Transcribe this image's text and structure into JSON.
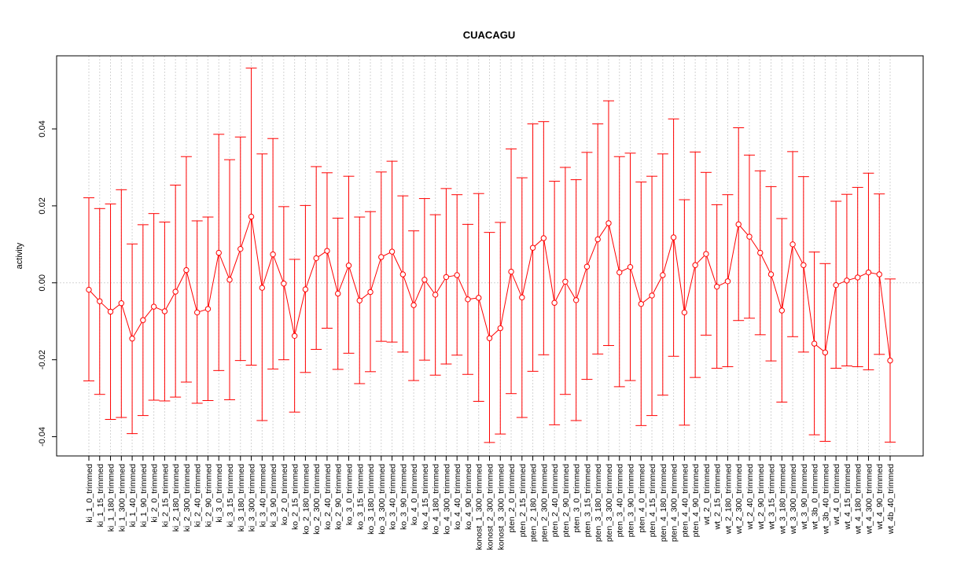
{
  "chart_data": {
    "type": "line",
    "title": "CUACAGU",
    "xlabel": "",
    "ylabel": "activity",
    "ylim": [
      -0.045,
      0.059
    ],
    "yticks": [
      -0.04,
      -0.02,
      0.0,
      0.02,
      0.04
    ],
    "ytick_labels": [
      "-0.04",
      "-0.02",
      "0.00",
      "0.02",
      "0.04"
    ],
    "grid": true,
    "colors": {
      "series": "#ff0000",
      "grid": "#d3d3d3",
      "axis": "#000000"
    },
    "categories": [
      "ki_1_0_trimmed",
      "ki_1_15_trimmed",
      "ki_1_180_trimmed",
      "ki_1_300_trimmed",
      "ki_1_40_trimmed",
      "ki_1_90_trimmed",
      "ki_2_0_trimmed",
      "ki_2_15_trimmed",
      "ki_2_180_trimmed",
      "ki_2_300_trimmed",
      "ki_2_40_trimmed",
      "ki_2_90_trimmed",
      "ki_3_0_trimmed",
      "ki_3_15_trimmed",
      "ki_3_180_trimmed",
      "ki_3_300_trimmed",
      "ki_3_40_trimmed",
      "ki_3_90_trimmed",
      "ko_2_0_trimmed",
      "ko_2_15_trimmed",
      "ko_2_180_trimmed",
      "ko_2_300_trimmed",
      "ko_2_40_trimmed",
      "ko_2_90_trimmed",
      "ko_3_0_trimmed",
      "ko_3_15_trimmed",
      "ko_3_180_trimmed",
      "ko_3_300_trimmed",
      "ko_3_40_trimmed",
      "ko_3_90_trimmed",
      "ko_4_0_trimmed",
      "ko_4_15_trimmed",
      "ko_4_180_trimmed",
      "ko_4_300_trimmed",
      "ko_4_40_trimmed",
      "ko_4_90_trimmed",
      "konost_1_300_trimmed",
      "konost_2_300_trimmed",
      "konost_3_300_trimmed",
      "pten_2_0_trimmed",
      "pten_2_15_trimmed",
      "pten_2_180_trimmed",
      "pten_2_300_trimmed",
      "pten_2_40_trimmed",
      "pten_2_90_trimmed",
      "pten_3_0_trimmed",
      "pten_3_15_trimmed",
      "pten_3_180_trimmed",
      "pten_3_300_trimmed",
      "pten_3_40_trimmed",
      "pten_3_90_trimmed",
      "pten_4_0_trimmed",
      "pten_4_15_trimmed",
      "pten_4_180_trimmed",
      "pten_4_300_trimmed",
      "pten_4_40_trimmed",
      "pten_4_90_trimmed",
      "wt_2_0_trimmed",
      "wt_2_15_trimmed",
      "wt_2_180_trimmed",
      "wt_2_300_trimmed",
      "wt_2_40_trimmed",
      "wt_2_90_trimmed",
      "wt_3_15_trimmed",
      "wt_3_180_trimmed",
      "wt_3_300_trimmed",
      "wt_3_90_trimmed",
      "wt_3b_0_trimmed",
      "wt_3b_40_trimmed",
      "wt_4_0_trimmed",
      "wt_4_15_trimmed",
      "wt_4_180_trimmed",
      "wt_4_300_trimmed",
      "wt_4_90_trimmed",
      "wt_4b_40_trimmed"
    ],
    "series": [
      {
        "values": [
          -0.0018,
          -0.0048,
          -0.0075,
          -0.0053,
          -0.0145,
          -0.0097,
          -0.0062,
          -0.0074,
          -0.0023,
          0.0033,
          -0.0077,
          -0.0068,
          0.0078,
          0.0008,
          0.0088,
          0.0172,
          -0.0013,
          0.0074,
          -0.0002,
          -0.0138,
          -0.0017,
          0.0064,
          0.0083,
          -0.0028,
          0.0045,
          -0.0046,
          -0.0024,
          0.0067,
          0.0081,
          0.0022,
          -0.0058,
          0.0008,
          -0.0031,
          0.0015,
          0.002,
          -0.0043,
          -0.0039,
          -0.0144,
          -0.0118,
          0.0029,
          -0.0038,
          0.0091,
          0.0116,
          -0.0052,
          0.0003,
          -0.0045,
          0.0042,
          0.0113,
          0.0155,
          0.0027,
          0.0041,
          -0.0055,
          -0.0033,
          0.002,
          0.0118,
          -0.0077,
          0.0046,
          0.0075,
          -0.001,
          0.0004,
          0.0152,
          0.012,
          0.0078,
          0.0022,
          -0.0072,
          0.01,
          0.0046,
          -0.0158,
          -0.0181,
          -0.0006,
          0.0006,
          0.0014,
          0.0027,
          0.0022,
          -0.0202
        ],
        "lower": [
          -0.0255,
          -0.029,
          -0.0355,
          -0.035,
          -0.0392,
          -0.0345,
          -0.0305,
          -0.0307,
          -0.0297,
          -0.0258,
          -0.0313,
          -0.0306,
          -0.0228,
          -0.0304,
          -0.0202,
          -0.0214,
          -0.0358,
          -0.0224,
          -0.02,
          -0.0336,
          -0.0233,
          -0.0173,
          -0.0118,
          -0.0225,
          -0.0183,
          -0.0262,
          -0.0231,
          -0.0152,
          -0.0154,
          -0.018,
          -0.0254,
          -0.0201,
          -0.024,
          -0.0211,
          -0.0188,
          -0.0238,
          -0.0308,
          -0.0415,
          -0.0393,
          -0.0288,
          -0.035,
          -0.023,
          -0.0187,
          -0.0369,
          -0.029,
          -0.0358,
          -0.0251,
          -0.0185,
          -0.0163,
          -0.027,
          -0.0254,
          -0.0371,
          -0.0345,
          -0.0292,
          -0.0191,
          -0.037,
          -0.0246,
          -0.0136,
          -0.0222,
          -0.0218,
          -0.0098,
          -0.0092,
          -0.0135,
          -0.0203,
          -0.031,
          -0.014,
          -0.018,
          -0.0395,
          -0.0412,
          -0.0222,
          -0.0216,
          -0.0218,
          -0.0226,
          -0.0186,
          -0.0414
        ],
        "upper": [
          0.0221,
          0.0193,
          0.0205,
          0.0242,
          0.0101,
          0.0151,
          0.018,
          0.0158,
          0.0254,
          0.0328,
          0.0161,
          0.0171,
          0.0386,
          0.032,
          0.0379,
          0.0558,
          0.0335,
          0.0375,
          0.0198,
          0.0061,
          0.0201,
          0.0302,
          0.0286,
          0.0168,
          0.0277,
          0.0171,
          0.0185,
          0.0288,
          0.0316,
          0.0226,
          0.0135,
          0.0219,
          0.0177,
          0.0245,
          0.0229,
          0.0152,
          0.0232,
          0.0131,
          0.0157,
          0.0348,
          0.0273,
          0.0413,
          0.0419,
          0.0264,
          0.03,
          0.0268,
          0.0339,
          0.0413,
          0.0473,
          0.0328,
          0.0337,
          0.0262,
          0.0277,
          0.0335,
          0.0426,
          0.0216,
          0.034,
          0.0287,
          0.0203,
          0.0229,
          0.0403,
          0.0332,
          0.0291,
          0.025,
          0.0167,
          0.0341,
          0.0276,
          0.008,
          0.005,
          0.0212,
          0.023,
          0.0248,
          0.0285,
          0.0231,
          0.001
        ]
      }
    ]
  }
}
